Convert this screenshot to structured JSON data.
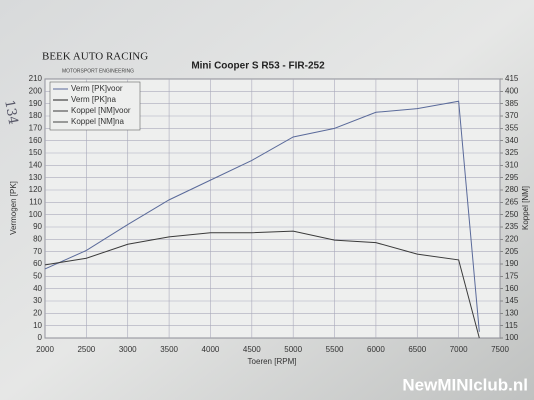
{
  "logo": {
    "name": "BEEK AUTO RACING",
    "tagline": "MOTORSPORT ENGINEERING"
  },
  "note": "134",
  "watermark": "NewMINIclub.nl",
  "chart_data": {
    "type": "line",
    "title": "Mini Cooper S R53 - FIR-252",
    "x_label": "Toeren [RPM]",
    "y_label": "Vermogen [PK]",
    "y2_label": "Koppel [NM]",
    "x": [
      2000,
      2500,
      3000,
      3500,
      4000,
      4500,
      5000,
      5500,
      6000,
      6500,
      7000,
      7250
    ],
    "series": [
      {
        "name": "Verm [PK]voor",
        "color": "#5a6a9a",
        "values": [
          56,
          71,
          92,
          112,
          128,
          144,
          163,
          170,
          183,
          186,
          192,
          5
        ]
      },
      {
        "name": "Verm [PK]na",
        "color": "#222222",
        "values": [
          null,
          null,
          null,
          null,
          null,
          null,
          null,
          null,
          null,
          null,
          null,
          null
        ]
      },
      {
        "name": "Koppel [NM]voor",
        "color": "#3a3a3a",
        "axis": "y2",
        "values": [
          189,
          197,
          214,
          223,
          228,
          228,
          230,
          219,
          216,
          202,
          195,
          100
        ]
      },
      {
        "name": "Koppel [NM]na",
        "color": "#444444",
        "axis": "y2",
        "values": [
          null,
          null,
          null,
          null,
          null,
          null,
          null,
          null,
          null,
          null,
          null,
          null
        ]
      }
    ],
    "xlim": [
      2000,
      7500
    ],
    "xticks": [
      2000,
      2500,
      3000,
      3500,
      4000,
      4500,
      5000,
      5500,
      6000,
      6500,
      7000,
      7500
    ],
    "ylim": [
      0,
      210
    ],
    "yticks": [
      0,
      10,
      20,
      30,
      40,
      50,
      60,
      70,
      80,
      90,
      100,
      110,
      120,
      130,
      140,
      150,
      160,
      170,
      180,
      190,
      200,
      210
    ],
    "y2lim": [
      100,
      415
    ],
    "y2ticks": [
      100,
      115,
      130,
      145,
      160,
      175,
      190,
      205,
      220,
      235,
      250,
      265,
      280,
      295,
      310,
      325,
      340,
      355,
      370,
      385,
      400,
      415
    ],
    "grid": true,
    "legend": "upper-left"
  }
}
